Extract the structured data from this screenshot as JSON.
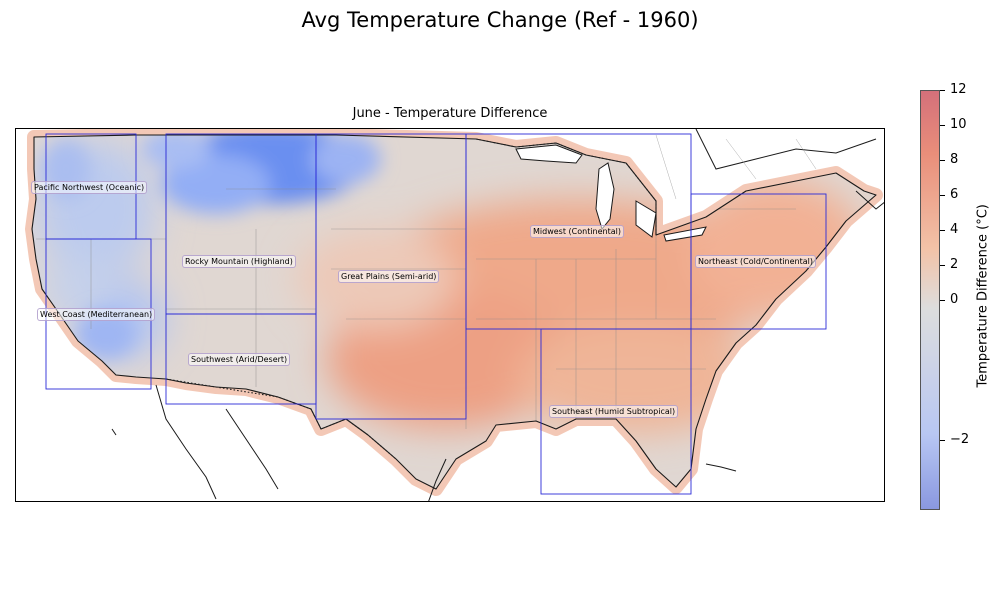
{
  "title": "Avg Temperature Change (Ref - 1960)",
  "subtitle": "June - Temperature Difference",
  "colorbar": {
    "label": "Temperature Difference (°C)",
    "ticks": [
      "12",
      "10",
      "8",
      "6",
      "4",
      "2",
      "0",
      "−2"
    ],
    "colors": {
      "low": "#3b4cc0",
      "mid": "#dddddd",
      "high": "#b40426"
    }
  },
  "regions": [
    {
      "id": "pacific-northwest",
      "label": "Pacific Northwest (Oceanic)"
    },
    {
      "id": "west-coast",
      "label": "West Coast (Mediterranean)"
    },
    {
      "id": "rocky-mountain",
      "label": "Rocky Mountain (Highland)"
    },
    {
      "id": "southwest",
      "label": "Southwest (Arid/Desert)"
    },
    {
      "id": "great-plains",
      "label": "Great Plains (Semi-arid)"
    },
    {
      "id": "midwest",
      "label": "Midwest (Continental)"
    },
    {
      "id": "northeast",
      "label": "Northeast (Cold/Continental)"
    },
    {
      "id": "southeast",
      "label": "Southeast (Humid Subtropical)"
    }
  ]
}
